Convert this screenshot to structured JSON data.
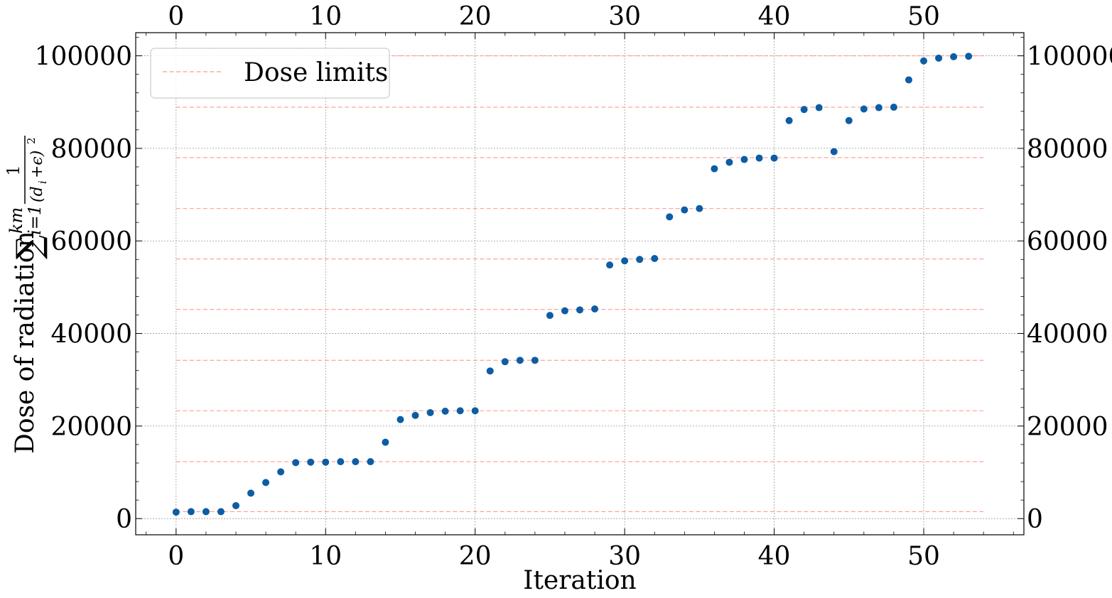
{
  "chart_data": {
    "type": "scatter",
    "xlabel": "Iteration",
    "ylabel": "Dose of radiation",
    "ylabel_math": {
      "sum_symbol": "∑",
      "upper": "km",
      "lower": "i=1",
      "numerator": "1",
      "denominator": "(d",
      "denominator_sub": "i",
      "denominator_rest": "+ϵ)",
      "denominator_sup": "2"
    },
    "xlim": [
      -2.7,
      56.7
    ],
    "ylim": [
      -3500,
      105000
    ],
    "x_ticks": [
      0,
      10,
      20,
      30,
      40,
      50
    ],
    "y_ticks": [
      0,
      20000,
      40000,
      60000,
      80000,
      100000
    ],
    "grid": true,
    "legend": {
      "position": "top-left",
      "entries": [
        "Dose limits"
      ]
    },
    "colors": {
      "points": "#0c5da5",
      "limits": "#ff9a8c",
      "grid": "#9a9a9a"
    },
    "series": [
      {
        "x": [
          0,
          1,
          2,
          3,
          4,
          5,
          6,
          7,
          8,
          9,
          10,
          11,
          12,
          13,
          14,
          15,
          16,
          17,
          18,
          19,
          20,
          21,
          22,
          23,
          24,
          25,
          26,
          27,
          28,
          29,
          30,
          31,
          32,
          33,
          34,
          35,
          36,
          37,
          38,
          39,
          40,
          41,
          42,
          43,
          44,
          45,
          46,
          47,
          48,
          49,
          50,
          51,
          52,
          53
        ],
        "y": [
          1400,
          1500,
          1500,
          1500,
          2800,
          5500,
          7800,
          10100,
          12100,
          12200,
          12200,
          12300,
          12300,
          12300,
          16500,
          21400,
          22300,
          22900,
          23200,
          23300,
          23300,
          31900,
          33900,
          34200,
          34200,
          43900,
          44900,
          45100,
          45300,
          54800,
          55700,
          56000,
          56200,
          65200,
          66700,
          67000,
          75600,
          77000,
          77600,
          77900,
          77900,
          86000,
          88400,
          88800,
          79300,
          86000,
          88500,
          88800,
          88900,
          94800,
          98900,
          99500,
          99800,
          99900
        ]
      }
    ],
    "limits": {
      "name": "Dose limits",
      "values": [
        1500,
        12300,
        23300,
        34200,
        45200,
        56100,
        67000,
        78000,
        88900,
        100000
      ],
      "x_range": [
        0,
        54
      ]
    }
  }
}
